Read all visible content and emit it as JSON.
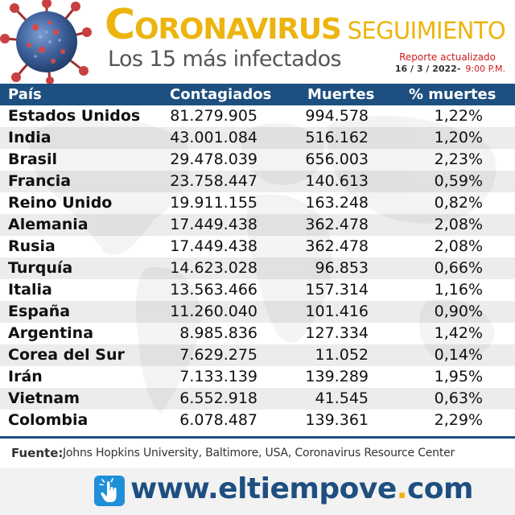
{
  "header": {
    "title_first_letter": "C",
    "title_rest": "ORONAVIRUS",
    "title_second": "SEGUIMIENTO",
    "subtitle": "Los 15 más infectados",
    "report_label": "Reporte actualizado",
    "report_date": "16 / 3 / 2022-",
    "report_time": "9:00 P.M."
  },
  "colors": {
    "header_bar": "#1d4f80",
    "title": "#ecb40e",
    "report_accent": "#cc1b1b",
    "stripe": "#ececec"
  },
  "table": {
    "columns": [
      "País",
      "Contagiados",
      "Muertes",
      "% muertes"
    ],
    "rows": [
      [
        "Estados Unidos",
        "81.279.905",
        "994.578",
        "1,22%"
      ],
      [
        "India",
        "43.001.084",
        "516.162",
        "1,20%"
      ],
      [
        "Brasil",
        "29.478.039",
        "656.003",
        "2,23%"
      ],
      [
        "Francia",
        "23.758.447",
        "140.613",
        "0,59%"
      ],
      [
        "Reino Unido",
        "19.911.155",
        "163.248",
        "0,82%"
      ],
      [
        "Alemania",
        "17.449.438",
        "362.478",
        "2,08%"
      ],
      [
        "Rusia",
        "17.449.438",
        "362.478",
        "2,08%"
      ],
      [
        "Turquía",
        "14.623.028",
        "96.853",
        "0,66%"
      ],
      [
        "Italia",
        "13.563.466",
        "157.314",
        "1,16%"
      ],
      [
        "España",
        "11.260.040",
        "101.416",
        "0,90%"
      ],
      [
        "Argentina",
        "8.985.836",
        "127.334",
        "1,42%"
      ],
      [
        "Corea del Sur",
        "7.629.275",
        "11.052",
        "0,14%"
      ],
      [
        "Irán",
        "7.133.139",
        "139.289",
        "1,95%"
      ],
      [
        "Vietnam",
        "6.552.918",
        "41.545",
        "0,63%"
      ],
      [
        "Colombia",
        "6.078.487",
        "139.361",
        "2,29%"
      ]
    ]
  },
  "footer": {
    "source_label": "Fuente:",
    "source_text": "Johns Hopkins University, Baltimore, USA, Coronavirus Resource Center",
    "site_www": "www.",
    "site_name": "eltiempove",
    "site_dot": ".",
    "site_tld": "com"
  }
}
